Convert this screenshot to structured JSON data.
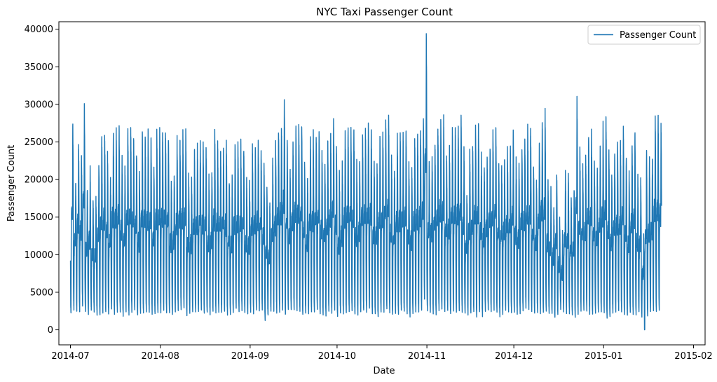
{
  "chart_data": {
    "type": "line",
    "title": "NYC Taxi Passenger Count",
    "xlabel": "Date",
    "ylabel": "Passenger Count",
    "x_range": [
      "2014-07-01",
      "2015-01-31"
    ],
    "x_ticks": [
      "2014-07",
      "2014-08",
      "2014-09",
      "2014-10",
      "2014-11",
      "2014-12",
      "2015-01",
      "2015-02"
    ],
    "ylim": [
      -2000,
      41000
    ],
    "y_ticks": [
      0,
      5000,
      10000,
      15000,
      20000,
      25000,
      30000,
      35000,
      40000
    ],
    "grid": false,
    "legend": {
      "position": "top-right",
      "entries": [
        "Passenger Count"
      ]
    },
    "sampling": "30-minute intervals",
    "series": [
      {
        "name": "Passenger Count",
        "color": "#1f77b4",
        "daily_peaks": [
          27600,
          20000,
          24500,
          23000,
          30000,
          18500,
          21000,
          17200,
          17000,
          22400,
          25600,
          26000,
          23000,
          20000,
          26300,
          26200,
          26900,
          23000,
          21000,
          26700,
          27200,
          26000,
          24000,
          20800,
          26400,
          26300,
          26000,
          25800,
          21000,
          26500,
          26400,
          26500,
          26700,
          25700,
          20600,
          20500,
          25000,
          25300,
          26000,
          25900,
          20000,
          20000,
          24000,
          24600,
          25000,
          24900,
          24500,
          20000,
          21000,
          26100,
          25000,
          24500,
          24800,
          24600,
          20000,
          20000,
          24800,
          24700,
          24500,
          24300,
          20000,
          19500,
          23900,
          24400,
          25300,
          23800,
          21500,
          18500,
          17200,
          22500,
          24500,
          26700,
          27300,
          30400,
          25000,
          21500,
          25200,
          27100,
          27300,
          27500,
          23000,
          20400,
          25700,
          26000,
          26300,
          26400,
          23400,
          22000,
          25000,
          26200,
          28100,
          24700,
          20500,
          22000,
          26200,
          27100,
          26900,
          26600,
          22000,
          23000,
          26300,
          27200,
          27300,
          27000,
          22500,
          22000,
          25900,
          26000,
          27500,
          28600,
          23000,
          21000,
          25700,
          25900,
          26000,
          26500,
          22000,
          21200,
          25600,
          26100,
          26800,
          28200,
          39200,
          22400,
          23000,
          25100,
          26700,
          27800,
          27900,
          23000,
          23800,
          26700,
          26500,
          27100,
          28500,
          24000,
          18500,
          23800,
          24300,
          26900,
          27400,
          23000,
          21700,
          23500,
          24900,
          26100,
          27000,
          22000,
          21700,
          23000,
          24300,
          24500,
          26900,
          22500,
          21500,
          24800,
          25500,
          26800,
          27000,
          22000,
          20000,
          25000,
          27900,
          28600,
          19700,
          18800,
          16500,
          21500,
          15000,
          12500,
          20800,
          20500,
          17700,
          19000,
          30200,
          23600,
          22000,
          23200,
          26100,
          26400,
          22000,
          21300,
          24400,
          26900,
          28400,
          24000,
          20500,
          23800,
          24700,
          24600,
          27600,
          23000,
          20300,
          24900,
          26600,
          20600,
          19800,
          13000,
          23700,
          22800,
          23500,
          28000,
          28700,
          27200
        ],
        "overnight_lows": [
          2100,
          2700,
          2500,
          2400,
          3300,
          2400,
          2100,
          2600,
          2400,
          2000,
          1900,
          2300,
          2300,
          2000,
          2600,
          2100,
          2400,
          2500,
          1900,
          2300,
          2100,
          2500,
          2600,
          1900,
          2200,
          2200,
          2400,
          2300,
          2200,
          2000,
          2300,
          2300,
          2500,
          2300,
          2100,
          2000,
          2300,
          2600,
          2700,
          2800,
          2000,
          2100,
          2300,
          2400,
          2300,
          2500,
          2100,
          2200,
          2000,
          2400,
          2400,
          2400,
          2200,
          2300,
          2100,
          2100,
          2300,
          2700,
          2400,
          2700,
          2200,
          2000,
          2400,
          2300,
          2600,
          2400,
          2600,
          1400,
          1800,
          2300,
          2600,
          2400,
          2500,
          2500,
          2000,
          2600,
          2700,
          2700,
          2600,
          2600,
          2000,
          2200,
          2100,
          2400,
          2400,
          2700,
          2000,
          2000,
          1800,
          2400,
          2300,
          2600,
          1700,
          2200,
          2200,
          2200,
          2600,
          2500,
          2000,
          2000,
          2300,
          2500,
          2500,
          2700,
          2100,
          2000,
          1700,
          2300,
          2500,
          2700,
          2300,
          2000,
          2100,
          2100,
          2500,
          2300,
          2300,
          1800,
          2300,
          2300,
          2400,
          2600,
          4000,
          2500,
          2200,
          2200,
          2100,
          2700,
          2600,
          2300,
          2600,
          2100,
          2600,
          2500,
          2500,
          2500,
          2200,
          2100,
          2100,
          2400,
          1800,
          2300,
          1900,
          2500,
          2600,
          2400,
          2600,
          2300,
          1900,
          2100,
          2500,
          2500,
          2400,
          2300,
          2000,
          2300,
          2500,
          2800,
          2700,
          2500,
          2100,
          2300,
          2300,
          2400,
          2500,
          2200,
          2100,
          1500,
          1900,
          2600,
          2300,
          2300,
          2300,
          2000,
          1800,
          2200,
          2600,
          2500,
          2500,
          2200,
          2000,
          2200,
          2300,
          2300,
          2400,
          1700,
          1700,
          2200,
          2400,
          2600,
          2500,
          2000,
          1800,
          2400,
          2200,
          2100,
          2300,
          1800,
          0,
          1900,
          2300,
          2700,
          2300,
          2600,
          3400,
          3300,
          3200
        ]
      }
    ]
  }
}
